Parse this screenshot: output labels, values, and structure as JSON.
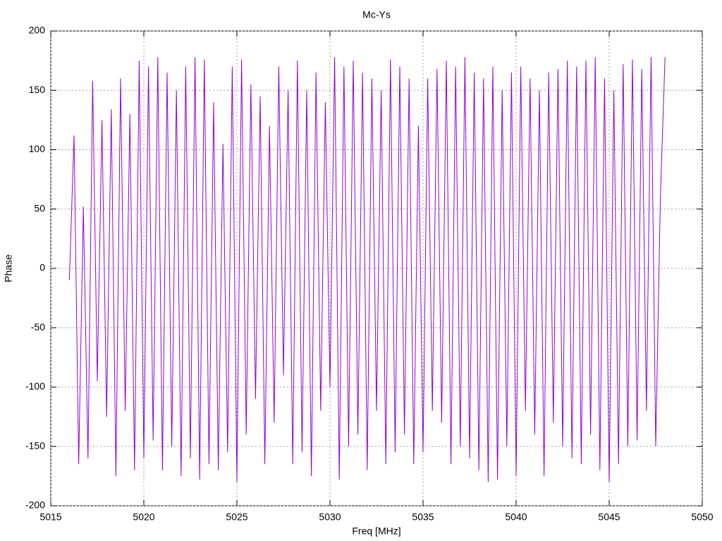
{
  "chart_data": {
    "type": "line",
    "title": "Mc-Ys",
    "xlabel": "Freq [MHz]",
    "ylabel": "Phase",
    "xlim": [
      5015,
      5050
    ],
    "xticks": [
      5015,
      5020,
      5025,
      5030,
      5035,
      5040,
      5045,
      5050
    ],
    "ylim": [
      -200,
      200
    ],
    "yticks": [
      -200,
      -150,
      -100,
      -50,
      0,
      50,
      100,
      150,
      200
    ],
    "grid": true,
    "x": [
      5016,
      5016.25,
      5016.5,
      5016.75,
      5017,
      5017.25,
      5017.5,
      5017.75,
      5018,
      5018.25,
      5018.5,
      5018.75,
      5019,
      5019.25,
      5019.5,
      5019.75,
      5020,
      5020.25,
      5020.5,
      5020.75,
      5021,
      5021.25,
      5021.5,
      5021.75,
      5022,
      5022.25,
      5022.5,
      5022.75,
      5023,
      5023.25,
      5023.5,
      5023.75,
      5024,
      5024.25,
      5024.5,
      5024.75,
      5025,
      5025.25,
      5025.5,
      5025.75,
      5026,
      5026.25,
      5026.5,
      5026.75,
      5027,
      5027.25,
      5027.5,
      5027.75,
      5028,
      5028.25,
      5028.5,
      5028.75,
      5029,
      5029.25,
      5029.5,
      5029.75,
      5030,
      5030.25,
      5030.5,
      5030.75,
      5031,
      5031.25,
      5031.5,
      5031.75,
      5032,
      5032.25,
      5032.5,
      5032.75,
      5033,
      5033.25,
      5033.5,
      5033.75,
      5034,
      5034.25,
      5034.5,
      5034.75,
      5035,
      5035.25,
      5035.5,
      5035.75,
      5036,
      5036.25,
      5036.5,
      5036.75,
      5037,
      5037.25,
      5037.5,
      5037.75,
      5038,
      5038.25,
      5038.5,
      5038.75,
      5039,
      5039.25,
      5039.5,
      5039.75,
      5040,
      5040.25,
      5040.5,
      5040.75,
      5041,
      5041.25,
      5041.5,
      5041.75,
      5042,
      5042.25,
      5042.5,
      5042.75,
      5043,
      5043.25,
      5043.5,
      5043.75,
      5044,
      5044.25,
      5044.5,
      5044.75,
      5045,
      5045.25,
      5045.5,
      5045.75,
      5046,
      5046.25,
      5046.5,
      5046.75,
      5047,
      5047.25,
      5047.5,
      5047.75,
      5048
    ],
    "series": [
      {
        "color": "#9400d3",
        "values": [
          -10,
          112,
          -165,
          52,
          -160,
          158,
          -95,
          125,
          -125,
          134,
          -175,
          160,
          -120,
          130,
          -170,
          175,
          -160,
          170,
          -145,
          178,
          -170,
          165,
          -150,
          150,
          -175,
          170,
          -160,
          178,
          -178,
          176,
          -165,
          140,
          -170,
          105,
          -155,
          170,
          -180,
          176,
          -140,
          155,
          -110,
          145,
          -165,
          120,
          -130,
          170,
          -90,
          150,
          -165,
          175,
          -155,
          150,
          -175,
          165,
          -120,
          140,
          -100,
          178,
          -178,
          170,
          -150,
          175,
          -140,
          165,
          -170,
          160,
          -120,
          150,
          -165,
          176,
          -155,
          170,
          -140,
          160,
          -165,
          120,
          -155,
          160,
          -120,
          168,
          -130,
          175,
          -165,
          170,
          -150,
          178,
          -160,
          165,
          -170,
          160,
          -180,
          170,
          -178,
          150,
          -150,
          165,
          -175,
          170,
          -120,
          160,
          -140,
          150,
          -175,
          165,
          -130,
          168,
          -150,
          175,
          -160,
          170,
          -165,
          175,
          -140,
          178,
          -170,
          160,
          -180,
          150,
          -165,
          172,
          -150,
          176,
          -145,
          168,
          -120,
          178,
          -150,
          60,
          178
        ]
      }
    ]
  }
}
